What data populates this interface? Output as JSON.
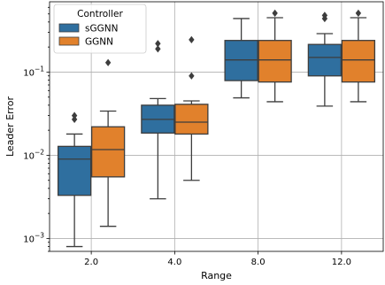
{
  "chart_data": {
    "type": "boxplot",
    "xlabel": "Range",
    "ylabel": "Leader Error",
    "yscale": "log",
    "ylim": [
      0.0007,
      0.7
    ],
    "categories": [
      "2.0",
      "4.0",
      "8.0",
      "12.0"
    ],
    "y_ticks": [
      {
        "value": 0.001,
        "label": "10",
        "exp": "−3"
      },
      {
        "value": 0.01,
        "label": "10",
        "exp": "−2"
      },
      {
        "value": 0.1,
        "label": "10",
        "exp": "−1"
      }
    ],
    "grid": true,
    "legend": {
      "title": "Controller",
      "placement": "top-left"
    },
    "series": [
      {
        "name": "sGGNN",
        "color": "#2f6f9f",
        "boxes": [
          {
            "whislo": 0.0008,
            "q1": 0.0033,
            "median": 0.009,
            "q3": 0.0128,
            "whishi": 0.018,
            "fliers": [
              0.027,
              0.03
            ]
          },
          {
            "whislo": 0.003,
            "q1": 0.0185,
            "median": 0.027,
            "q3": 0.04,
            "whishi": 0.048,
            "fliers": [
              0.19,
              0.22
            ]
          },
          {
            "whislo": 0.049,
            "q1": 0.079,
            "median": 0.14,
            "q3": 0.24,
            "whishi": 0.44,
            "fliers": []
          },
          {
            "whislo": 0.039,
            "q1": 0.09,
            "median": 0.15,
            "q3": 0.215,
            "whishi": 0.29,
            "fliers": [
              0.44,
              0.48
            ]
          }
        ]
      },
      {
        "name": "GGNN",
        "color": "#e1812c",
        "boxes": [
          {
            "whislo": 0.0014,
            "q1": 0.0055,
            "median": 0.0117,
            "q3": 0.022,
            "whishi": 0.034,
            "fliers": [
              0.13
            ]
          },
          {
            "whislo": 0.005,
            "q1": 0.018,
            "median": 0.025,
            "q3": 0.041,
            "whishi": 0.045,
            "fliers": [
              0.09,
              0.245
            ]
          },
          {
            "whislo": 0.044,
            "q1": 0.076,
            "median": 0.14,
            "q3": 0.24,
            "whishi": 0.45,
            "fliers": [
              0.51
            ]
          },
          {
            "whislo": 0.044,
            "q1": 0.076,
            "median": 0.14,
            "q3": 0.24,
            "whishi": 0.45,
            "fliers": [
              0.51
            ]
          }
        ]
      }
    ]
  }
}
